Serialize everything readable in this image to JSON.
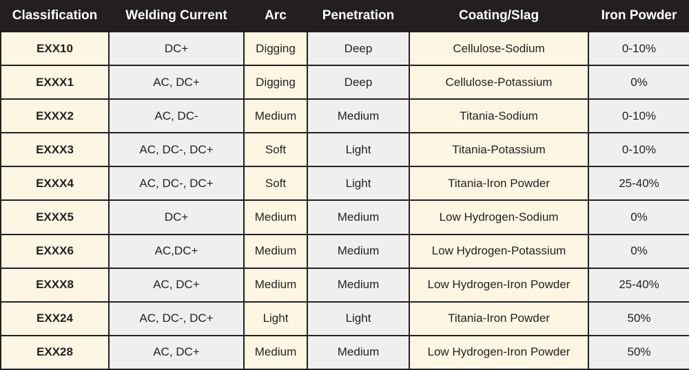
{
  "table": {
    "headers": [
      "Classification",
      "Welding Current",
      "Arc",
      "Penetration",
      "Coating/Slag",
      "Iron Powder"
    ],
    "rows": [
      [
        "EXX10",
        "DC+",
        "Digging",
        "Deep",
        "Cellulose-Sodium",
        "0-10%"
      ],
      [
        "EXXX1",
        "AC, DC+",
        "Digging",
        "Deep",
        "Cellulose-Potassium",
        "0%"
      ],
      [
        "EXXX2",
        "AC, DC-",
        "Medium",
        "Medium",
        "Titania-Sodium",
        "0-10%"
      ],
      [
        "EXXX3",
        "AC, DC-, DC+",
        "Soft",
        "Light",
        "Titania-Potassium",
        "0-10%"
      ],
      [
        "EXXX4",
        "AC, DC-, DC+",
        "Soft",
        "Light",
        "Titania-Iron Powder",
        "25-40%"
      ],
      [
        "EXXX5",
        "DC+",
        "Medium",
        "Medium",
        "Low Hydrogen-Sodium",
        "0%"
      ],
      [
        "EXXX6",
        "AC,DC+",
        "Medium",
        "Medium",
        "Low Hydrogen-Potassium",
        "0%"
      ],
      [
        "EXXX8",
        "AC, DC+",
        "Medium",
        "Medium",
        "Low Hydrogen-Iron Powder",
        "25-40%"
      ],
      [
        "EXX24",
        "AC, DC-, DC+",
        "Light",
        "Light",
        "Titania-Iron Powder",
        "50%"
      ],
      [
        "EXX28",
        "AC, DC+",
        "Medium",
        "Medium",
        "Low Hydrogen-Iron Powder",
        "50%"
      ]
    ]
  },
  "colors": {
    "header_bg": "#231f20",
    "header_text": "#ffffff",
    "cream_cell": "#fdf6e3",
    "grey_cell": "#efefef"
  }
}
